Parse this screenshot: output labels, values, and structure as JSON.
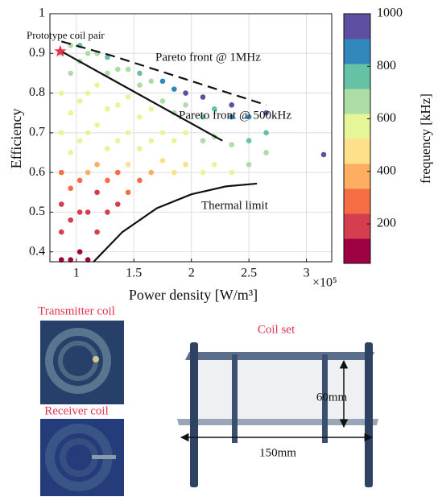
{
  "chart_data": {
    "type": "scatter",
    "xlabel": "Power density [W/m³]",
    "x_offset_label": "×10⁵",
    "ylabel": "Efficiency",
    "xlim": [
      0.77,
      3.22
    ],
    "xticks": [
      1,
      1.5,
      2,
      2.5,
      3
    ],
    "ylim": [
      0.375,
      1
    ],
    "yticks": [
      0.4,
      0.5,
      0.6,
      0.7,
      0.8,
      0.9,
      1
    ],
    "grid": true,
    "x": [
      0.87,
      0.87,
      0.87,
      0.87,
      0.87,
      0.87,
      0.87,
      0.95,
      0.95,
      0.95,
      0.95,
      0.95,
      0.95,
      0.95,
      1.03,
      1.03,
      1.03,
      1.03,
      1.03,
      1.03,
      1.03,
      1.1,
      1.1,
      1.1,
      1.1,
      1.1,
      1.1,
      1.18,
      1.18,
      1.18,
      1.18,
      1.18,
      1.18,
      1.27,
      1.27,
      1.27,
      1.27,
      1.27,
      1.27,
      1.36,
      1.36,
      1.36,
      1.36,
      1.36,
      1.45,
      1.45,
      1.45,
      1.45,
      1.45,
      1.55,
      1.55,
      1.55,
      1.55,
      1.55,
      1.65,
      1.65,
      1.65,
      1.65,
      1.75,
      1.75,
      1.75,
      1.75,
      1.85,
      1.85,
      1.85,
      1.85,
      1.95,
      1.95,
      1.95,
      1.95,
      2.1,
      2.1,
      2.1,
      2.1,
      2.2,
      2.2,
      2.2,
      2.35,
      2.35,
      2.35,
      2.35,
      2.5,
      2.5,
      2.5,
      2.65,
      2.65,
      2.65,
      3.15
    ],
    "y": [
      0.38,
      0.45,
      0.52,
      0.6,
      0.7,
      0.8,
      0.9,
      0.38,
      0.48,
      0.56,
      0.65,
      0.75,
      0.85,
      0.92,
      0.4,
      0.5,
      0.58,
      0.68,
      0.78,
      0.88,
      0.92,
      0.38,
      0.5,
      0.6,
      0.7,
      0.8,
      0.9,
      0.45,
      0.55,
      0.62,
      0.72,
      0.82,
      0.9,
      0.5,
      0.58,
      0.66,
      0.76,
      0.85,
      0.89,
      0.52,
      0.6,
      0.68,
      0.77,
      0.86,
      0.55,
      0.62,
      0.7,
      0.79,
      0.86,
      0.58,
      0.66,
      0.74,
      0.82,
      0.85,
      0.6,
      0.68,
      0.76,
      0.83,
      0.63,
      0.7,
      0.78,
      0.83,
      0.6,
      0.68,
      0.75,
      0.81,
      0.62,
      0.7,
      0.77,
      0.8,
      0.6,
      0.68,
      0.74,
      0.79,
      0.62,
      0.69,
      0.76,
      0.6,
      0.67,
      0.74,
      0.77,
      0.62,
      0.68,
      0.74,
      0.65,
      0.7,
      0.75,
      0.645
    ],
    "frequency": [
      100,
      150,
      200,
      300,
      550,
      600,
      650,
      100,
      150,
      250,
      550,
      600,
      620,
      700,
      100,
      200,
      300,
      550,
      600,
      620,
      750,
      100,
      150,
      350,
      550,
      600,
      650,
      150,
      200,
      400,
      580,
      600,
      700,
      150,
      250,
      550,
      600,
      620,
      750,
      200,
      300,
      550,
      600,
      650,
      250,
      450,
      580,
      600,
      700,
      300,
      550,
      600,
      620,
      800,
      400,
      580,
      600,
      700,
      500,
      600,
      620,
      850,
      450,
      600,
      650,
      900,
      500,
      600,
      700,
      950,
      550,
      620,
      750,
      950,
      580,
      650,
      800,
      600,
      700,
      850,
      1000,
      620,
      750,
      900,
      650,
      800,
      950,
      1000
    ],
    "colorbar": {
      "label": "frequency [kHz]",
      "lim": [
        50,
        1000
      ],
      "ticks": [
        200,
        400,
        600,
        800,
        1000
      ],
      "colors": [
        "#9e0142",
        "#d53e4f",
        "#f46d43",
        "#fdae61",
        "#fee08b",
        "#e6f598",
        "#abdda4",
        "#66c2a5",
        "#3288bd",
        "#5e4fa2"
      ]
    },
    "curves": [
      {
        "name": "Pareto front @ 1MHz",
        "style": "dashed",
        "x": [
          0.87,
          1.3,
          2.65
        ],
        "y": [
          0.93,
          0.895,
          0.77
        ]
      },
      {
        "name": "Pareto front @ 500kHz",
        "style": "solid",
        "x": [
          0.87,
          2.27
        ],
        "y": [
          0.905,
          0.68
        ]
      },
      {
        "name": "Thermal limit",
        "style": "solid",
        "x": [
          1.15,
          1.4,
          1.7,
          2.0,
          2.3,
          2.57
        ],
        "y": [
          0.375,
          0.45,
          0.51,
          0.545,
          0.565,
          0.572
        ]
      }
    ],
    "prototype": {
      "label": "Prototype coil pair",
      "x": 0.86,
      "y": 0.905,
      "color": "#e8304a"
    }
  },
  "figure_panels": {
    "transmitter_label": "Transmitter coil",
    "receiver_label": "Receiver coil",
    "coil_set_label": "Coil set",
    "height_label": "60mm",
    "width_label": "150mm"
  }
}
